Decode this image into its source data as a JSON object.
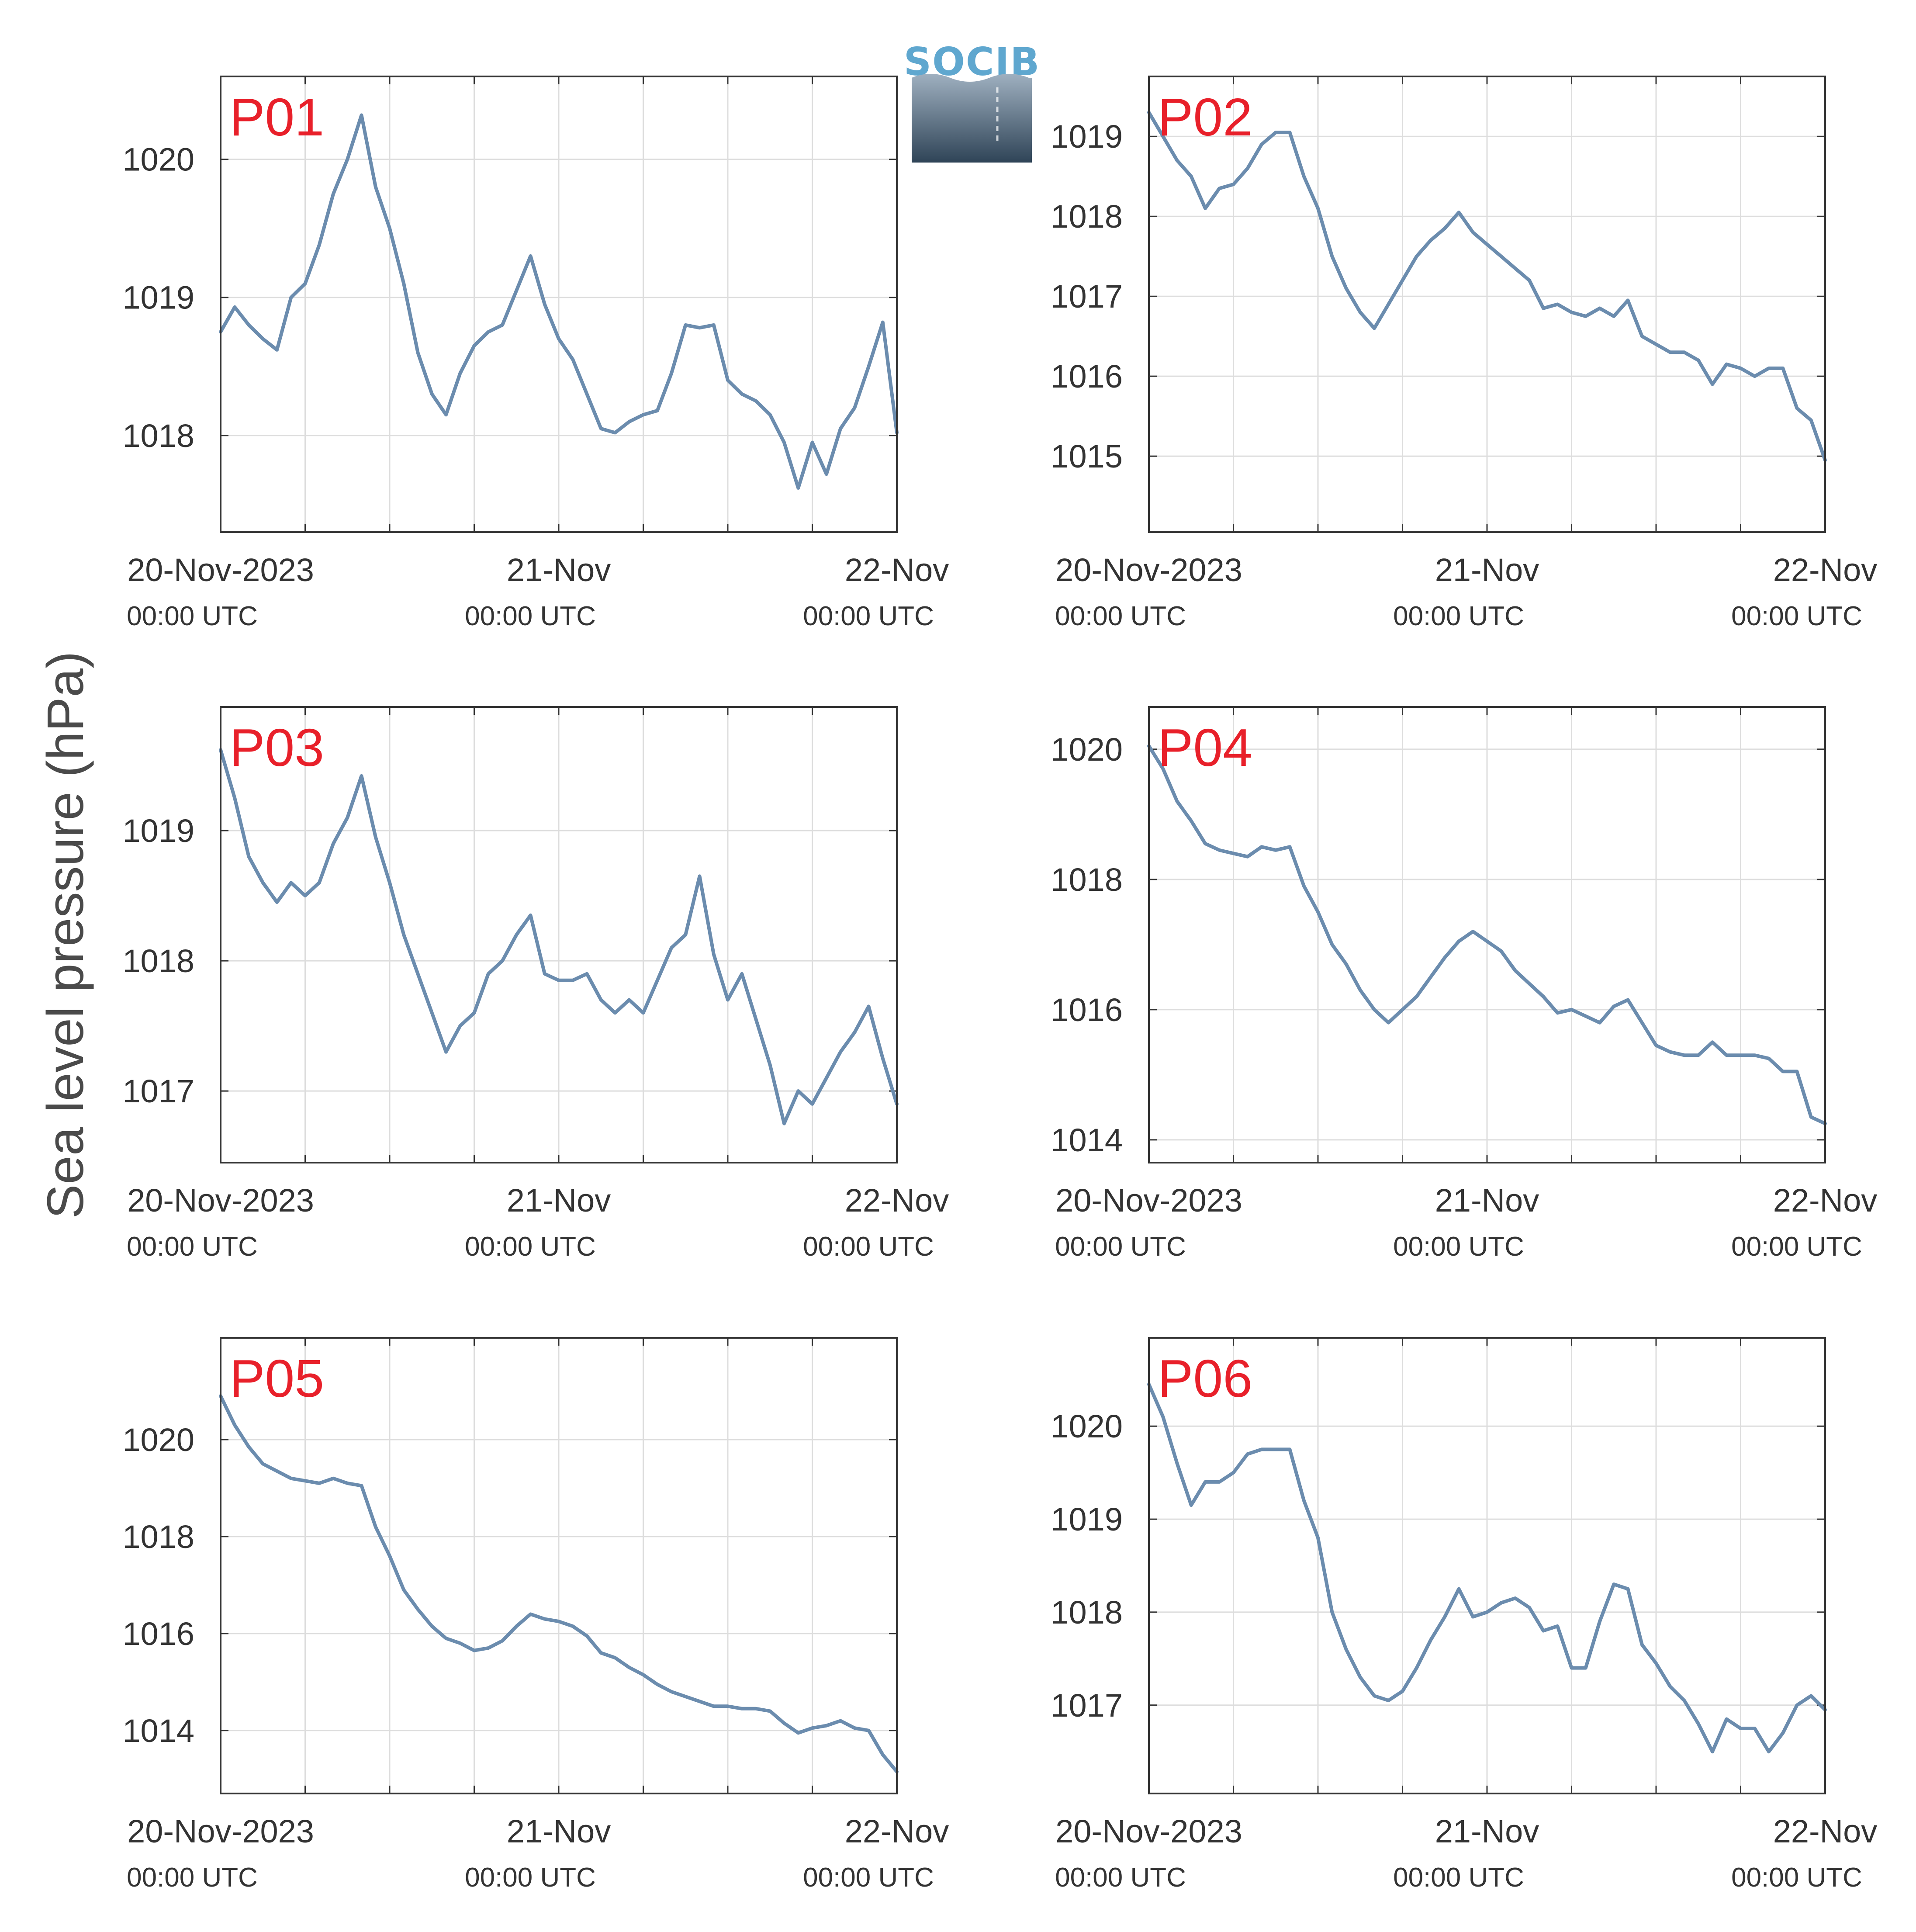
{
  "figure": {
    "ylabel": "Sea level pressure (hPa)",
    "logo_text": "SOCIB",
    "colors": {
      "line": "#6b8cae",
      "label": "#e8202a",
      "grid": "#dddddd",
      "axis": "#333333",
      "logo_top": "#5fa7cf",
      "logo_bottom": "#2f4457"
    },
    "x_axis": {
      "range": [
        "2023-11-20 00:00",
        "2023-11-22 00:00"
      ],
      "ticks": [
        {
          "date": "2023-11-20 00:00",
          "label": "20-Nov-2023",
          "sublabel": "00:00 UTC"
        },
        {
          "date": "2023-11-21 00:00",
          "label": "21-Nov",
          "sublabel": "00:00 UTC"
        },
        {
          "date": "2023-11-22 00:00",
          "label": "22-Nov",
          "sublabel": "00:00 UTC"
        }
      ],
      "grid_dates": [
        "2023-11-20 06:00",
        "2023-11-20 12:00",
        "2023-11-20 18:00",
        "2023-11-21 00:00",
        "2023-11-21 06:00",
        "2023-11-21 12:00",
        "2023-11-21 18:00"
      ]
    }
  },
  "chart_data": [
    {
      "type": "line",
      "title": "P01",
      "ylim": [
        1017.3,
        1020.6
      ],
      "yticks": [
        1018,
        1019,
        1020
      ],
      "x": [
        "2023-11-20 00:00",
        "2023-11-20 01:00",
        "2023-11-20 02:00",
        "2023-11-20 03:00",
        "2023-11-20 04:00",
        "2023-11-20 05:00",
        "2023-11-20 06:00",
        "2023-11-20 07:00",
        "2023-11-20 08:00",
        "2023-11-20 09:00",
        "2023-11-20 10:00",
        "2023-11-20 11:00",
        "2023-11-20 12:00",
        "2023-11-20 13:00",
        "2023-11-20 14:00",
        "2023-11-20 15:00",
        "2023-11-20 16:00",
        "2023-11-20 17:00",
        "2023-11-20 18:00",
        "2023-11-20 19:00",
        "2023-11-20 20:00",
        "2023-11-20 21:00",
        "2023-11-20 22:00",
        "2023-11-20 23:00",
        "2023-11-21 00:00",
        "2023-11-21 01:00",
        "2023-11-21 02:00",
        "2023-11-21 03:00",
        "2023-11-21 04:00",
        "2023-11-21 05:00",
        "2023-11-21 06:00",
        "2023-11-21 07:00",
        "2023-11-21 08:00",
        "2023-11-21 09:00",
        "2023-11-21 10:00",
        "2023-11-21 11:00",
        "2023-11-21 12:00",
        "2023-11-21 13:00",
        "2023-11-21 14:00",
        "2023-11-21 15:00",
        "2023-11-21 16:00",
        "2023-11-21 17:00",
        "2023-11-21 18:00",
        "2023-11-21 19:00",
        "2023-11-21 20:00",
        "2023-11-21 21:00",
        "2023-11-21 22:00",
        "2023-11-21 23:00",
        "2023-11-22 00:00"
      ],
      "series": [
        {
          "values": [
            1018.75,
            1018.93,
            1018.8,
            1018.7,
            1018.62,
            1019.0,
            1019.1,
            1019.38,
            1019.75,
            1020.0,
            1020.32,
            1019.8,
            1019.5,
            1019.1,
            1018.6,
            1018.3,
            1018.15,
            1018.45,
            1018.65,
            1018.75,
            1018.8,
            1019.05,
            1019.3,
            1018.95,
            1018.7,
            1018.55,
            1018.3,
            1018.05,
            1018.02,
            1018.1,
            1018.15,
            1018.18,
            1018.45,
            1018.8,
            1018.78,
            1018.8,
            1018.4,
            1018.3,
            1018.25,
            1018.15,
            1017.95,
            1017.62,
            1017.95,
            1017.72,
            1018.05,
            1018.2,
            1018.5,
            1018.82,
            1018.02
          ]
        }
      ]
    },
    {
      "type": "line",
      "title": "P02",
      "ylim": [
        1014.05,
        1019.75
      ],
      "yticks": [
        1015,
        1016,
        1017,
        1018,
        1019
      ],
      "x": [
        "2023-11-20 00:00",
        "2023-11-20 01:00",
        "2023-11-20 02:00",
        "2023-11-20 03:00",
        "2023-11-20 04:00",
        "2023-11-20 05:00",
        "2023-11-20 06:00",
        "2023-11-20 07:00",
        "2023-11-20 08:00",
        "2023-11-20 09:00",
        "2023-11-20 10:00",
        "2023-11-20 11:00",
        "2023-11-20 12:00",
        "2023-11-20 13:00",
        "2023-11-20 14:00",
        "2023-11-20 15:00",
        "2023-11-20 16:00",
        "2023-11-20 17:00",
        "2023-11-20 18:00",
        "2023-11-20 19:00",
        "2023-11-20 20:00",
        "2023-11-20 21:00",
        "2023-11-20 22:00",
        "2023-11-20 23:00",
        "2023-11-21 00:00",
        "2023-11-21 01:00",
        "2023-11-21 02:00",
        "2023-11-21 03:00",
        "2023-11-21 04:00",
        "2023-11-21 05:00",
        "2023-11-21 06:00",
        "2023-11-21 07:00",
        "2023-11-21 08:00",
        "2023-11-21 09:00",
        "2023-11-21 10:00",
        "2023-11-21 11:00",
        "2023-11-21 12:00",
        "2023-11-21 13:00",
        "2023-11-21 14:00",
        "2023-11-21 15:00",
        "2023-11-21 16:00",
        "2023-11-21 17:00",
        "2023-11-21 18:00",
        "2023-11-21 19:00",
        "2023-11-21 20:00",
        "2023-11-21 21:00",
        "2023-11-21 22:00",
        "2023-11-21 23:00",
        "2023-11-22 00:00"
      ],
      "series": [
        {
          "values": [
            1019.3,
            1019.0,
            1018.7,
            1018.5,
            1018.1,
            1018.35,
            1018.4,
            1018.6,
            1018.9,
            1019.05,
            1019.05,
            1018.5,
            1018.1,
            1017.5,
            1017.1,
            1016.8,
            1016.6,
            1016.9,
            1017.2,
            1017.5,
            1017.7,
            1017.85,
            1018.05,
            1017.8,
            1017.65,
            1017.5,
            1017.35,
            1017.2,
            1016.85,
            1016.9,
            1016.8,
            1016.75,
            1016.85,
            1016.75,
            1016.95,
            1016.5,
            1016.4,
            1016.3,
            1016.3,
            1016.2,
            1015.9,
            1016.15,
            1016.1,
            1016.0,
            1016.1,
            1016.1,
            1015.6,
            1015.45,
            1014.95
          ]
        }
      ]
    },
    {
      "type": "line",
      "title": "P03",
      "ylim": [
        1016.45,
        1019.95
      ],
      "yticks": [
        1017,
        1018,
        1019
      ],
      "x": [
        "2023-11-20 00:00",
        "2023-11-20 01:00",
        "2023-11-20 02:00",
        "2023-11-20 03:00",
        "2023-11-20 04:00",
        "2023-11-20 05:00",
        "2023-11-20 06:00",
        "2023-11-20 07:00",
        "2023-11-20 08:00",
        "2023-11-20 09:00",
        "2023-11-20 10:00",
        "2023-11-20 11:00",
        "2023-11-20 12:00",
        "2023-11-20 13:00",
        "2023-11-20 14:00",
        "2023-11-20 15:00",
        "2023-11-20 16:00",
        "2023-11-20 17:00",
        "2023-11-20 18:00",
        "2023-11-20 19:00",
        "2023-11-20 20:00",
        "2023-11-20 21:00",
        "2023-11-20 22:00",
        "2023-11-20 23:00",
        "2023-11-21 00:00",
        "2023-11-21 01:00",
        "2023-11-21 02:00",
        "2023-11-21 03:00",
        "2023-11-21 04:00",
        "2023-11-21 05:00",
        "2023-11-21 06:00",
        "2023-11-21 07:00",
        "2023-11-21 08:00",
        "2023-11-21 09:00",
        "2023-11-21 10:00",
        "2023-11-21 11:00",
        "2023-11-21 12:00",
        "2023-11-21 13:00",
        "2023-11-21 14:00",
        "2023-11-21 15:00",
        "2023-11-21 16:00",
        "2023-11-21 17:00",
        "2023-11-21 18:00",
        "2023-11-21 19:00",
        "2023-11-21 20:00",
        "2023-11-21 21:00",
        "2023-11-21 22:00",
        "2023-11-21 23:00",
        "2023-11-22 00:00"
      ],
      "series": [
        {
          "values": [
            1019.62,
            1019.25,
            1018.8,
            1018.6,
            1018.45,
            1018.6,
            1018.5,
            1018.6,
            1018.9,
            1019.1,
            1019.42,
            1018.95,
            1018.6,
            1018.2,
            1017.9,
            1017.6,
            1017.3,
            1017.5,
            1017.6,
            1017.9,
            1018.0,
            1018.2,
            1018.35,
            1017.9,
            1017.85,
            1017.85,
            1017.9,
            1017.7,
            1017.6,
            1017.7,
            1017.6,
            1017.85,
            1018.1,
            1018.2,
            1018.65,
            1018.05,
            1017.7,
            1017.9,
            1017.55,
            1017.2,
            1016.75,
            1017.0,
            1016.9,
            1017.1,
            1017.3,
            1017.45,
            1017.65,
            1017.25,
            1016.9
          ]
        }
      ]
    },
    {
      "type": "line",
      "title": "P04",
      "ylim": [
        1013.65,
        1020.65
      ],
      "yticks": [
        1014,
        1016,
        1018,
        1020
      ],
      "x": [
        "2023-11-20 00:00",
        "2023-11-20 01:00",
        "2023-11-20 02:00",
        "2023-11-20 03:00",
        "2023-11-20 04:00",
        "2023-11-20 05:00",
        "2023-11-20 06:00",
        "2023-11-20 07:00",
        "2023-11-20 08:00",
        "2023-11-20 09:00",
        "2023-11-20 10:00",
        "2023-11-20 11:00",
        "2023-11-20 12:00",
        "2023-11-20 13:00",
        "2023-11-20 14:00",
        "2023-11-20 15:00",
        "2023-11-20 16:00",
        "2023-11-20 17:00",
        "2023-11-20 18:00",
        "2023-11-20 19:00",
        "2023-11-20 20:00",
        "2023-11-20 21:00",
        "2023-11-20 22:00",
        "2023-11-20 23:00",
        "2023-11-21 00:00",
        "2023-11-21 01:00",
        "2023-11-21 02:00",
        "2023-11-21 03:00",
        "2023-11-21 04:00",
        "2023-11-21 05:00",
        "2023-11-21 06:00",
        "2023-11-21 07:00",
        "2023-11-21 08:00",
        "2023-11-21 09:00",
        "2023-11-21 10:00",
        "2023-11-21 11:00",
        "2023-11-21 12:00",
        "2023-11-21 13:00",
        "2023-11-21 14:00",
        "2023-11-21 15:00",
        "2023-11-21 16:00",
        "2023-11-21 17:00",
        "2023-11-21 18:00",
        "2023-11-21 19:00",
        "2023-11-21 20:00",
        "2023-11-21 21:00",
        "2023-11-21 22:00",
        "2023-11-21 23:00",
        "2023-11-22 00:00"
      ],
      "series": [
        {
          "values": [
            1020.05,
            1019.7,
            1019.2,
            1018.9,
            1018.55,
            1018.45,
            1018.4,
            1018.35,
            1018.5,
            1018.45,
            1018.5,
            1017.9,
            1017.5,
            1017.0,
            1016.7,
            1016.3,
            1016.0,
            1015.8,
            1016.0,
            1016.2,
            1016.5,
            1016.8,
            1017.05,
            1017.2,
            1017.05,
            1016.9,
            1016.6,
            1016.4,
            1016.2,
            1015.95,
            1016.0,
            1015.9,
            1015.8,
            1016.05,
            1016.15,
            1015.8,
            1015.45,
            1015.35,
            1015.3,
            1015.3,
            1015.5,
            1015.3,
            1015.3,
            1015.3,
            1015.25,
            1015.05,
            1015.05,
            1014.35,
            1014.25
          ]
        }
      ]
    },
    {
      "type": "line",
      "title": "P05",
      "ylim": [
        1012.7,
        1022.1
      ],
      "yticks": [
        1014,
        1016,
        1018,
        1020
      ],
      "x": [
        "2023-11-20 00:00",
        "2023-11-20 01:00",
        "2023-11-20 02:00",
        "2023-11-20 03:00",
        "2023-11-20 04:00",
        "2023-11-20 05:00",
        "2023-11-20 06:00",
        "2023-11-20 07:00",
        "2023-11-20 08:00",
        "2023-11-20 09:00",
        "2023-11-20 10:00",
        "2023-11-20 11:00",
        "2023-11-20 12:00",
        "2023-11-20 13:00",
        "2023-11-20 14:00",
        "2023-11-20 15:00",
        "2023-11-20 16:00",
        "2023-11-20 17:00",
        "2023-11-20 18:00",
        "2023-11-20 19:00",
        "2023-11-20 20:00",
        "2023-11-20 21:00",
        "2023-11-20 22:00",
        "2023-11-20 23:00",
        "2023-11-21 00:00",
        "2023-11-21 01:00",
        "2023-11-21 02:00",
        "2023-11-21 03:00",
        "2023-11-21 04:00",
        "2023-11-21 05:00",
        "2023-11-21 06:00",
        "2023-11-21 07:00",
        "2023-11-21 08:00",
        "2023-11-21 09:00",
        "2023-11-21 10:00",
        "2023-11-21 11:00",
        "2023-11-21 12:00",
        "2023-11-21 13:00",
        "2023-11-21 14:00",
        "2023-11-21 15:00",
        "2023-11-21 16:00",
        "2023-11-21 17:00",
        "2023-11-21 18:00",
        "2023-11-21 19:00",
        "2023-11-21 20:00",
        "2023-11-21 21:00",
        "2023-11-21 22:00",
        "2023-11-21 23:00",
        "2023-11-22 00:00"
      ],
      "series": [
        {
          "values": [
            1020.9,
            1020.3,
            1019.85,
            1019.5,
            1019.35,
            1019.2,
            1019.15,
            1019.1,
            1019.2,
            1019.1,
            1019.05,
            1018.2,
            1017.6,
            1016.9,
            1016.5,
            1016.15,
            1015.9,
            1015.8,
            1015.65,
            1015.7,
            1015.85,
            1016.15,
            1016.4,
            1016.3,
            1016.25,
            1016.15,
            1015.95,
            1015.6,
            1015.5,
            1015.3,
            1015.15,
            1014.95,
            1014.8,
            1014.7,
            1014.6,
            1014.5,
            1014.5,
            1014.45,
            1014.45,
            1014.4,
            1014.15,
            1013.95,
            1014.05,
            1014.1,
            1014.2,
            1014.05,
            1014.0,
            1013.5,
            1013.15
          ]
        }
      ]
    },
    {
      "type": "line",
      "title": "P06",
      "ylim": [
        1016.05,
        1020.95
      ],
      "yticks": [
        1017,
        1018,
        1019,
        1020
      ],
      "x": [
        "2023-11-20 00:00",
        "2023-11-20 01:00",
        "2023-11-20 02:00",
        "2023-11-20 03:00",
        "2023-11-20 04:00",
        "2023-11-20 05:00",
        "2023-11-20 06:00",
        "2023-11-20 07:00",
        "2023-11-20 08:00",
        "2023-11-20 09:00",
        "2023-11-20 10:00",
        "2023-11-20 11:00",
        "2023-11-20 12:00",
        "2023-11-20 13:00",
        "2023-11-20 14:00",
        "2023-11-20 15:00",
        "2023-11-20 16:00",
        "2023-11-20 17:00",
        "2023-11-20 18:00",
        "2023-11-20 19:00",
        "2023-11-20 20:00",
        "2023-11-20 21:00",
        "2023-11-20 22:00",
        "2023-11-20 23:00",
        "2023-11-21 00:00",
        "2023-11-21 01:00",
        "2023-11-21 02:00",
        "2023-11-21 03:00",
        "2023-11-21 04:00",
        "2023-11-21 05:00",
        "2023-11-21 06:00",
        "2023-11-21 07:00",
        "2023-11-21 08:00",
        "2023-11-21 09:00",
        "2023-11-21 10:00",
        "2023-11-21 11:00",
        "2023-11-21 12:00",
        "2023-11-21 13:00",
        "2023-11-21 14:00",
        "2023-11-21 15:00",
        "2023-11-21 16:00",
        "2023-11-21 17:00",
        "2023-11-21 18:00",
        "2023-11-21 19:00",
        "2023-11-21 20:00",
        "2023-11-21 21:00",
        "2023-11-21 22:00",
        "2023-11-21 23:00",
        "2023-11-22 00:00"
      ],
      "series": [
        {
          "values": [
            1020.45,
            1020.1,
            1019.6,
            1019.15,
            1019.4,
            1019.4,
            1019.5,
            1019.7,
            1019.75,
            1019.75,
            1019.75,
            1019.2,
            1018.8,
            1018.0,
            1017.6,
            1017.3,
            1017.1,
            1017.05,
            1017.15,
            1017.4,
            1017.7,
            1017.95,
            1018.25,
            1017.95,
            1018.0,
            1018.1,
            1018.15,
            1018.05,
            1017.8,
            1017.85,
            1017.4,
            1017.4,
            1017.9,
            1018.3,
            1018.25,
            1017.65,
            1017.45,
            1017.2,
            1017.05,
            1016.8,
            1016.5,
            1016.85,
            1016.75,
            1016.75,
            1016.5,
            1016.7,
            1017.0,
            1017.1,
            1016.95
          ]
        }
      ]
    }
  ]
}
